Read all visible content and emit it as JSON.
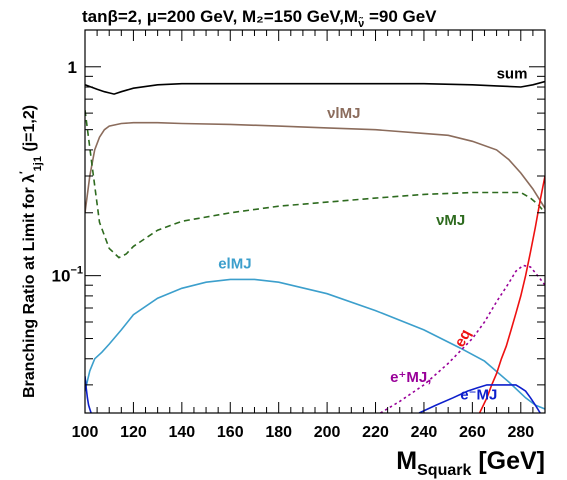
{
  "chart_data": {
    "type": "line",
    "title": "tanβ=2,  μ=200 GeV, M₂=150 GeV,M",
    "title_sub": "ν̃",
    "title_tail": " =90 GeV",
    "xlabel": "M",
    "xlabel_sub": "Squark",
    "xlabel_unit": " [GeV]",
    "ylabel": "Branching Ratio at Limit for  λ",
    "ylabel_sup": "′",
    "ylabel_sub": "1j1",
    "ylabel_tail": "  (j=1,2)",
    "xlim": [
      100,
      290
    ],
    "ylim": [
      0.022,
      1.5
    ],
    "yscale": "log",
    "x_ticks": [
      100,
      120,
      140,
      160,
      180,
      200,
      220,
      240,
      260,
      280
    ],
    "y_major_labels": [
      {
        "value": 1,
        "label": "1"
      },
      {
        "value": 0.1,
        "label": "10",
        "exp": "−1"
      }
    ],
    "grid": false,
    "legend": "none",
    "series": [
      {
        "name": "sum",
        "label": "sum",
        "color": "#000000",
        "dash": "solid",
        "label_at": [
          270,
          0.88
        ],
        "x": [
          100,
          105,
          108,
          110,
          112,
          115,
          120,
          130,
          140,
          160,
          180,
          200,
          220,
          240,
          260,
          270,
          280,
          285,
          290
        ],
        "y": [
          0.82,
          0.78,
          0.76,
          0.75,
          0.74,
          0.76,
          0.79,
          0.82,
          0.83,
          0.83,
          0.83,
          0.83,
          0.83,
          0.83,
          0.82,
          0.81,
          0.8,
          0.82,
          0.85
        ]
      },
      {
        "name": "νlMJ",
        "label": "νlMJ",
        "color": "#8b6c5c",
        "dash": "solid",
        "label_at": [
          200,
          0.57
        ],
        "x": [
          100,
          102,
          104,
          106,
          108,
          110,
          115,
          120,
          130,
          140,
          160,
          180,
          200,
          220,
          240,
          250,
          260,
          270,
          275,
          280,
          285,
          290
        ],
        "y": [
          0.2,
          0.3,
          0.4,
          0.46,
          0.5,
          0.52,
          0.535,
          0.54,
          0.54,
          0.535,
          0.53,
          0.52,
          0.51,
          0.5,
          0.48,
          0.47,
          0.44,
          0.4,
          0.36,
          0.31,
          0.26,
          0.21
        ]
      },
      {
        "name": "νMJ",
        "label": "νMJ",
        "color": "#2e6b1f",
        "dash": "dashed",
        "label_at": [
          245,
          0.175
        ],
        "x": [
          100,
          103,
          106,
          110,
          114,
          117,
          120,
          130,
          140,
          160,
          180,
          200,
          220,
          240,
          260,
          270,
          280,
          284,
          287,
          290
        ],
        "y": [
          0.62,
          0.33,
          0.18,
          0.135,
          0.122,
          0.127,
          0.138,
          0.165,
          0.182,
          0.2,
          0.215,
          0.225,
          0.235,
          0.245,
          0.25,
          0.25,
          0.25,
          0.235,
          0.22,
          0.2
        ]
      },
      {
        "name": "elMJ",
        "label": "elMJ",
        "color": "#3c9fcc",
        "dash": "solid",
        "label_at": [
          155,
          0.108
        ],
        "x": [
          100,
          102,
          104,
          107,
          110,
          115,
          120,
          130,
          140,
          150,
          160,
          170,
          180,
          200,
          220,
          240,
          255,
          265,
          275,
          282,
          286,
          290
        ],
        "y": [
          0.028,
          0.035,
          0.04,
          0.043,
          0.047,
          0.055,
          0.065,
          0.078,
          0.087,
          0.093,
          0.096,
          0.096,
          0.093,
          0.082,
          0.068,
          0.055,
          0.045,
          0.039,
          0.031,
          0.026,
          0.024,
          0.023
        ]
      },
      {
        "name": "eq",
        "label": "eq",
        "color": "#ee1111",
        "dash": "solid",
        "label_at": [
          256,
          0.045
        ],
        "x": [
          263,
          266,
          268,
          270,
          272,
          274,
          276,
          278,
          280,
          282,
          284,
          286,
          288,
          290
        ],
        "y": [
          0.022,
          0.026,
          0.03,
          0.034,
          0.04,
          0.046,
          0.055,
          0.066,
          0.08,
          0.1,
          0.13,
          0.17,
          0.23,
          0.3
        ]
      },
      {
        "name": "e⁺MJ",
        "label": "e⁺MJ,",
        "color": "#990099",
        "dash": "dotted",
        "label_at": [
          226,
          0.031
        ],
        "x": [
          222,
          230,
          240,
          250,
          260,
          265,
          270,
          275,
          278,
          281,
          284,
          287,
          290
        ],
        "y": [
          0.022,
          0.025,
          0.03,
          0.038,
          0.05,
          0.06,
          0.075,
          0.092,
          0.105,
          0.112,
          0.11,
          0.1,
          0.09
        ]
      },
      {
        "name": "e⁻MJ",
        "label": "e⁻MJ",
        "color": "#0d1fcc",
        "dash": "solid",
        "label_at": [
          255,
          0.0255
        ],
        "x": [
          238,
          245,
          252,
          258,
          262,
          266,
          270,
          274,
          278,
          280,
          282,
          284,
          286,
          288,
          290
        ],
        "y": [
          0.022,
          0.024,
          0.026,
          0.028,
          0.029,
          0.03,
          0.03,
          0.03,
          0.03,
          0.029,
          0.028,
          0.026,
          0.024,
          0.022,
          0.02
        ]
      },
      {
        "name": "edge",
        "label": "",
        "color": "#0d1fcc",
        "dash": "solid",
        "label_at": null,
        "x": [
          100,
          100.5,
          101,
          101.5,
          102,
          102.5,
          103
        ],
        "y": [
          0.033,
          0.029,
          0.026,
          0.024,
          0.023,
          0.022,
          0.021
        ]
      }
    ]
  }
}
